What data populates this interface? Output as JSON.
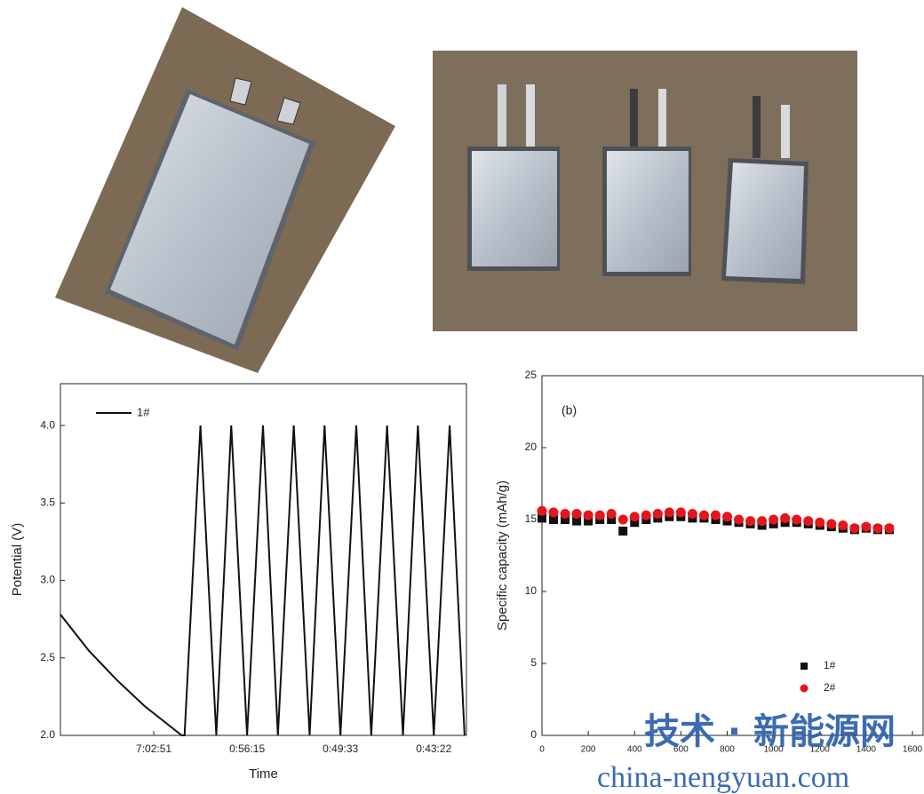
{
  "chart_data": [
    {
      "type": "line",
      "x_label": "Time",
      "y_label": "Potential (V)",
      "x": [
        0,
        0.3,
        0.6,
        0.9,
        1.3,
        1.33,
        1.5,
        1.67,
        1.83,
        2.0,
        2.17,
        2.33,
        2.5,
        2.67,
        2.83,
        3.0,
        3.17,
        3.33,
        3.5,
        3.67,
        3.83,
        4.0,
        4.17,
        4.33
      ],
      "series": [
        {
          "name": "1#",
          "color": "#111111",
          "values": [
            2.78,
            2.55,
            2.36,
            2.19,
            2.0,
            2.0,
            4.0,
            2.0,
            4.0,
            2.0,
            4.0,
            2.0,
            4.0,
            2.0,
            4.0,
            2.0,
            4.0,
            2.0,
            4.0,
            2.0,
            4.0,
            2.0,
            4.0,
            2.0
          ]
        }
      ],
      "xlim": [
        0,
        4.35
      ],
      "xticks": [
        {
          "value": 1,
          "label": "7:02:51"
        },
        {
          "value": 2,
          "label": "0:56:15"
        },
        {
          "value": 3,
          "label": "0:49:33"
        },
        {
          "value": 4,
          "label": "0:43:22"
        }
      ],
      "ylim": [
        2.0,
        4.27
      ],
      "yticks": [
        {
          "value": 2,
          "label": "2.0"
        },
        2.5,
        {
          "value": 3,
          "label": "3.0"
        },
        3.5,
        {
          "value": 4,
          "label": "4.0"
        }
      ],
      "legend": "upper left"
    },
    {
      "type": "scatter",
      "annotation": "(b)",
      "y_label": "Specific capacity (mAh/g)",
      "x": [
        0,
        50,
        100,
        150,
        200,
        250,
        300,
        350,
        400,
        450,
        500,
        550,
        600,
        650,
        700,
        750,
        800,
        850,
        900,
        950,
        1000,
        1050,
        1100,
        1150,
        1200,
        1250,
        1300,
        1350,
        1400,
        1450,
        1500
      ],
      "series": [
        {
          "name": "1#",
          "color": "#111111",
          "marker": "square",
          "values": [
            15.1,
            15.0,
            15.0,
            14.9,
            14.9,
            15.0,
            15.0,
            14.2,
            14.8,
            15.0,
            15.1,
            15.2,
            15.2,
            15.1,
            15.1,
            15.0,
            14.9,
            14.8,
            14.7,
            14.6,
            14.7,
            14.8,
            14.8,
            14.7,
            14.6,
            14.5,
            14.4,
            14.3,
            14.4,
            14.3,
            14.3
          ]
        },
        {
          "name": "2#",
          "color": "#e8141b",
          "marker": "circle",
          "values": [
            15.6,
            15.5,
            15.4,
            15.4,
            15.3,
            15.3,
            15.4,
            15.0,
            15.2,
            15.3,
            15.4,
            15.5,
            15.5,
            15.4,
            15.3,
            15.3,
            15.2,
            15.0,
            14.9,
            14.9,
            15.0,
            15.1,
            15.0,
            14.9,
            14.8,
            14.7,
            14.6,
            14.4,
            14.5,
            14.4,
            14.4
          ]
        }
      ],
      "xlim": [
        0,
        1600
      ],
      "xticks": [
        0,
        200,
        400,
        600,
        800,
        1000,
        1200,
        1400,
        1600
      ],
      "ylim": [
        0,
        25
      ],
      "yticks": [
        0,
        5,
        10,
        15,
        20,
        25
      ],
      "legend": "lower right"
    }
  ],
  "watermark": {
    "title": "技术 · 新能源网",
    "url": "china-nengyuan.com"
  }
}
